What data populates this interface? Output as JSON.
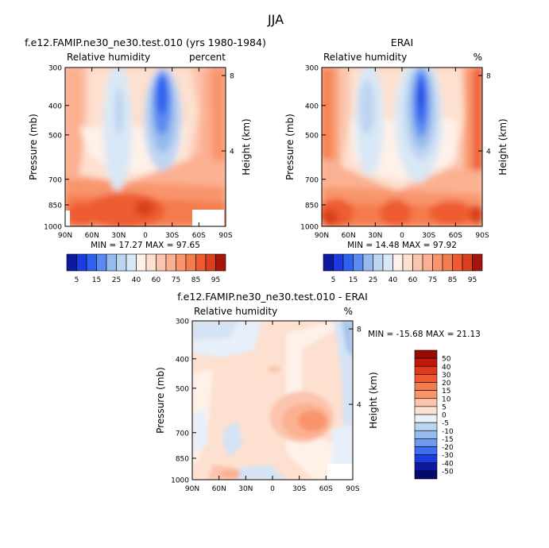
{
  "figure": {
    "title": "JJA"
  },
  "chart_data": [
    {
      "type": "heatmap",
      "title": "f.e12.FAMIP.ne30_ne30.test.010 (yrs 1980-1984)",
      "subtitle": "Relative humidity",
      "units": "percent",
      "ylabel": "Pressure (mb)",
      "ylabel_right": "Height (km)",
      "x_ticks": [
        "90N",
        "60N",
        "30N",
        "0",
        "30S",
        "60S",
        "90S"
      ],
      "y_ticks": [
        "300",
        "400",
        "500",
        "700",
        "850",
        "1000"
      ],
      "y_right_ticks": [
        "8",
        "4"
      ],
      "stats": {
        "min_label": "MIN =",
        "min": "17.27",
        "max_label": "MAX =",
        "max": "97.65"
      },
      "colorbar": [
        "5",
        "15",
        "25",
        "40",
        "60",
        "75",
        "85",
        "95"
      ]
    },
    {
      "type": "heatmap",
      "title": "ERAI",
      "subtitle": "Relative humidity",
      "units": "%",
      "ylabel": "Pressure (mb)",
      "ylabel_right": "Height (km)",
      "x_ticks": [
        "90N",
        "60N",
        "30N",
        "0",
        "30S",
        "60S",
        "90S"
      ],
      "y_ticks": [
        "300",
        "400",
        "500",
        "700",
        "850",
        "1000"
      ],
      "y_right_ticks": [
        "8",
        "4"
      ],
      "stats": {
        "min_label": "MIN =",
        "min": "14.48",
        "max_label": "MAX =",
        "max": "97.92"
      },
      "colorbar": [
        "5",
        "15",
        "25",
        "40",
        "60",
        "75",
        "85",
        "95"
      ]
    },
    {
      "type": "heatmap",
      "title": "f.e12.FAMIP.ne30_ne30.test.010 - ERAI",
      "subtitle": "Relative humidity",
      "units": "%",
      "ylabel": "Pressure (mb)",
      "ylabel_right": "Height (km)",
      "x_ticks": [
        "90N",
        "60N",
        "30N",
        "0",
        "30S",
        "60S",
        "90S"
      ],
      "y_ticks": [
        "300",
        "400",
        "500",
        "700",
        "850",
        "1000"
      ],
      "y_right_ticks": [
        "8",
        "4"
      ],
      "stats": {
        "min_label": "MIN =",
        "min": "-15.68",
        "max_label": "MAX =",
        "max": "21.13"
      },
      "colorbar": [
        "50",
        "40",
        "30",
        "20",
        "15",
        "10",
        "5",
        "0",
        "-5",
        "-10",
        "-15",
        "-20",
        "-30",
        "-40",
        "-50"
      ]
    }
  ]
}
